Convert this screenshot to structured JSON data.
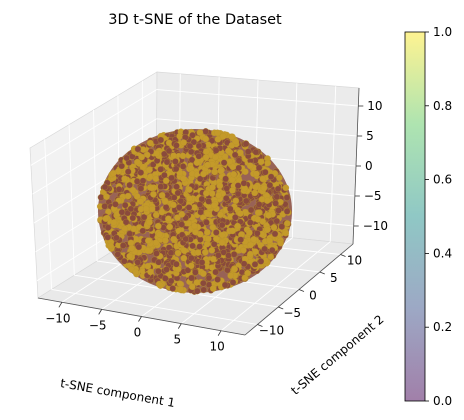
{
  "chart_data": {
    "type": "scatter",
    "projection": "3d",
    "title": "3D t-SNE of the Dataset",
    "xlabel": "t-SNE component 1",
    "ylabel": "t-SNE component 2",
    "zlabel": "",
    "xlim": [
      -13,
      13
    ],
    "ylim": [
      -13,
      13
    ],
    "zlim": [
      -13,
      13
    ],
    "x_ticks": [
      -10,
      -5,
      0,
      5,
      10
    ],
    "y_ticks": [
      -10,
      -5,
      0,
      5,
      10
    ],
    "z_ticks": [
      -10,
      -5,
      0,
      5,
      10
    ],
    "grid": true,
    "point_shape": "sphere",
    "point_colors": [
      "#8a4a3c",
      "#c49a2a"
    ],
    "point_edge_color": "#b8922a",
    "colorbar": {
      "range": [
        0,
        1
      ],
      "ticks": [
        0.0,
        0.2,
        0.4,
        0.6,
        0.8,
        1.0
      ],
      "tick_labels": [
        "0.0",
        "0.2",
        "0.4",
        "0.6",
        "0.8",
        "1.0"
      ],
      "colormap": "viridis",
      "alpha": 0.5,
      "placement": "right"
    }
  }
}
